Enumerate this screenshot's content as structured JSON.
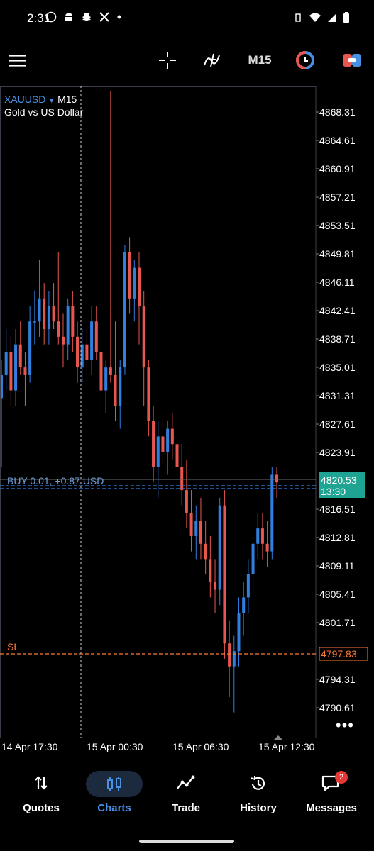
{
  "status_bar": {
    "time": "2:31"
  },
  "toolbar": {
    "timeframe": "M15"
  },
  "symbol": {
    "name": "XAUUSD",
    "timeframe": "M15",
    "description": "Gold vs US Dollar"
  },
  "price_axis": {
    "labels": [
      "4868.31",
      "4864.61",
      "4860.91",
      "4857.21",
      "4853.51",
      "4849.81",
      "4846.11",
      "4842.41",
      "4838.71",
      "4835.01",
      "4831.31",
      "4827.61",
      "4823.91",
      "4816.51",
      "4812.81",
      "4809.11",
      "4805.41",
      "4801.71",
      "4794.31",
      "4790.61"
    ]
  },
  "time_axis": {
    "labels": [
      "14 Apr 17:30",
      "15 Apr 00:30",
      "15 Apr 06:30",
      "15 Apr 12:30"
    ]
  },
  "position": {
    "label": "BUY 0.01,  +0.87 USD"
  },
  "current_price": {
    "price": "4820.53",
    "countdown": "13:30"
  },
  "stop_loss": {
    "label": "SL",
    "price": "4797.83"
  },
  "nav": {
    "items": [
      {
        "label": "Quotes"
      },
      {
        "label": "Charts"
      },
      {
        "label": "Trade"
      },
      {
        "label": "History"
      },
      {
        "label": "Messages"
      }
    ],
    "messages_badge": "2"
  },
  "colors": {
    "bull": "#2f7fe0",
    "bear": "#e8574f",
    "sl": "#ff7a33",
    "price_tag": "#1fa393",
    "accent": "#4a90e2"
  },
  "chart_data": {
    "type": "candlestick",
    "y_range": [
      4788,
      4871
    ],
    "candles": [
      [
        4831,
        4836,
        4822,
        4834
      ],
      [
        4834,
        4840,
        4832,
        4837
      ],
      [
        4837,
        4839,
        4830,
        4832
      ],
      [
        4832,
        4840,
        4830,
        4838
      ],
      [
        4838,
        4841,
        4834,
        4835
      ],
      [
        4835,
        4837,
        4830,
        4834
      ],
      [
        4834,
        4843,
        4833,
        4841
      ],
      [
        4841,
        4845,
        4838,
        4841
      ],
      [
        4841,
        4849,
        4839,
        4844
      ],
      [
        4844,
        4846,
        4838,
        4840
      ],
      [
        4840,
        4845,
        4838,
        4843
      ],
      [
        4843,
        4846,
        4840,
        4841
      ],
      [
        4841,
        4850,
        4838,
        4839
      ],
      [
        4839,
        4842,
        4835,
        4838
      ],
      [
        4838,
        4844,
        4836,
        4843
      ],
      [
        4843,
        4845,
        4837,
        4839
      ],
      [
        4839,
        4841,
        4833,
        4835
      ],
      [
        4835,
        4840,
        4833,
        4838
      ],
      [
        4838,
        4840,
        4834,
        4836
      ],
      [
        4836,
        4843,
        4834,
        4841
      ],
      [
        4841,
        4843,
        4836,
        4837
      ],
      [
        4837,
        4839,
        4828,
        4832
      ],
      [
        4832,
        4836,
        4829,
        4835
      ],
      [
        4835,
        4871,
        4833,
        4834
      ],
      [
        4834,
        4841,
        4828,
        4830
      ],
      [
        4830,
        4836,
        4827,
        4835
      ],
      [
        4835,
        4851,
        4834,
        4850
      ],
      [
        4850,
        4852,
        4842,
        4844
      ],
      [
        4844,
        4849,
        4841,
        4848
      ],
      [
        4848,
        4850,
        4838,
        4843
      ],
      [
        4843,
        4845,
        4830,
        4835
      ],
      [
        4835,
        4836,
        4826,
        4828
      ],
      [
        4828,
        4830,
        4820,
        4822
      ],
      [
        4822,
        4828,
        4818,
        4826
      ],
      [
        4826,
        4829,
        4822,
        4824
      ],
      [
        4824,
        4828,
        4821,
        4827
      ],
      [
        4827,
        4829,
        4823,
        4825
      ],
      [
        4825,
        4828,
        4820,
        4822
      ],
      [
        4822,
        4825,
        4817,
        4819
      ],
      [
        4819,
        4823,
        4814,
        4816
      ],
      [
        4816,
        4819,
        4811,
        4813
      ],
      [
        4813,
        4817,
        4810,
        4815
      ],
      [
        4815,
        4818,
        4810,
        4812
      ],
      [
        4812,
        4815,
        4808,
        4810
      ],
      [
        4810,
        4813,
        4805,
        4807
      ],
      [
        4807,
        4810,
        4803,
        4806
      ],
      [
        4806,
        4818,
        4804,
        4817
      ],
      [
        4817,
        4819,
        4797,
        4799
      ],
      [
        4799,
        4802,
        4792,
        4796
      ],
      [
        4796,
        4800,
        4790,
        4798
      ],
      [
        4798,
        4805,
        4796,
        4803
      ],
      [
        4803,
        4807,
        4800,
        4805
      ],
      [
        4805,
        4810,
        4803,
        4808
      ],
      [
        4808,
        4813,
        4806,
        4812
      ],
      [
        4812,
        4816,
        4810,
        4814
      ],
      [
        4814,
        4816,
        4810,
        4812
      ],
      [
        4812,
        4815,
        4809,
        4811
      ],
      [
        4811,
        4822,
        4810,
        4821
      ],
      [
        4821,
        4822,
        4818,
        4820
      ]
    ]
  }
}
